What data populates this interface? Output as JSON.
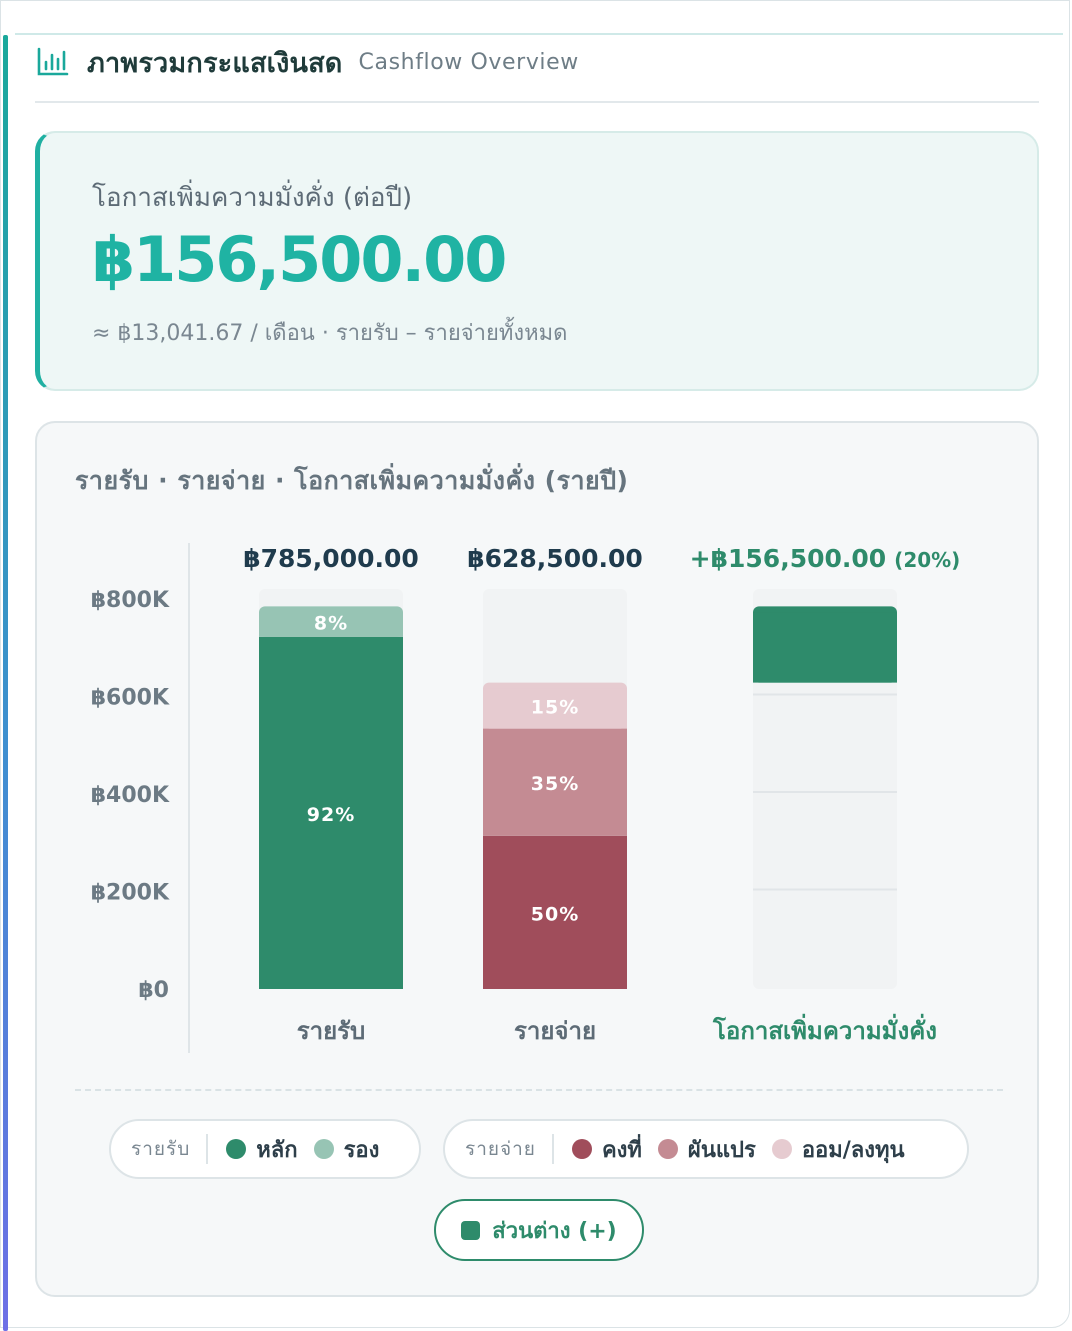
{
  "header": {
    "title": "ภาพรวมกระแสเงินสด",
    "subtitle": "Cashflow Overview",
    "icon": "bar-chart-icon"
  },
  "hero": {
    "label": "โอกาสเพิ่มความมั่งคั่ง (ต่อปี)",
    "value": "฿156,500.00",
    "note": "≈ ฿13,041.67 / เดือน · รายรับ – รายจ่ายทั้งหมด"
  },
  "colors": {
    "accent": "#1fb3a3",
    "income_main": "#2e8b6b",
    "income_secondary": "#97c4b4",
    "expense_fixed": "#a04d5b",
    "expense_variable": "#c48b93",
    "expense_saving": "#e6cbd0",
    "track": "#f1f3f4"
  },
  "chart_data": {
    "type": "bar",
    "stacked": true,
    "title": "รายรับ · รายจ่าย · โอกาสเพิ่มความมั่งคั่ง (รายปี)",
    "ylim": [
      0,
      800000
    ],
    "yticks": [
      {
        "value": 800000,
        "label": "฿800K"
      },
      {
        "value": 600000,
        "label": "฿600K"
      },
      {
        "value": 400000,
        "label": "฿400K"
      },
      {
        "value": 200000,
        "label": "฿200K"
      },
      {
        "value": 0,
        "label": "฿0"
      }
    ],
    "categories": [
      {
        "name": "รายรับ",
        "total": 785000,
        "total_label": "฿785,000.00",
        "segments": [
          {
            "series": "หลัก",
            "value": 722200,
            "label": "92%",
            "color": "#2e8b6b"
          },
          {
            "series": "รอง",
            "value": 62800,
            "label": "8%",
            "color": "#97c4b4"
          }
        ]
      },
      {
        "name": "รายจ่าย",
        "total": 628500,
        "total_label": "฿628,500.00",
        "segments": [
          {
            "series": "คงที่",
            "value": 314250,
            "label": "50%",
            "color": "#a04d5b"
          },
          {
            "series": "ผันแปร",
            "value": 219975,
            "label": "35%",
            "color": "#c48b93"
          },
          {
            "series": "ออม/ลงทุน",
            "value": 94275,
            "label": "15%",
            "color": "#e6cbd0"
          }
        ]
      },
      {
        "name": "โอกาสเพิ่มความมั่งคั่ง",
        "total": 156500,
        "total_label": "+฿156,500.00",
        "total_sublabel": "(20%)",
        "segments": [
          {
            "series": "ส่วนต่าง (+)",
            "value": 156500,
            "label": "",
            "color": "#2e8b6b"
          }
        ]
      }
    ]
  },
  "legend": {
    "income": {
      "group": "รายรับ",
      "items": [
        "หลัก",
        "รอง"
      ]
    },
    "expense": {
      "group": "รายจ่าย",
      "items": [
        "คงที่",
        "ผันแปร",
        "ออม/ลงทุน"
      ]
    },
    "difference": "ส่วนต่าง (+)"
  }
}
